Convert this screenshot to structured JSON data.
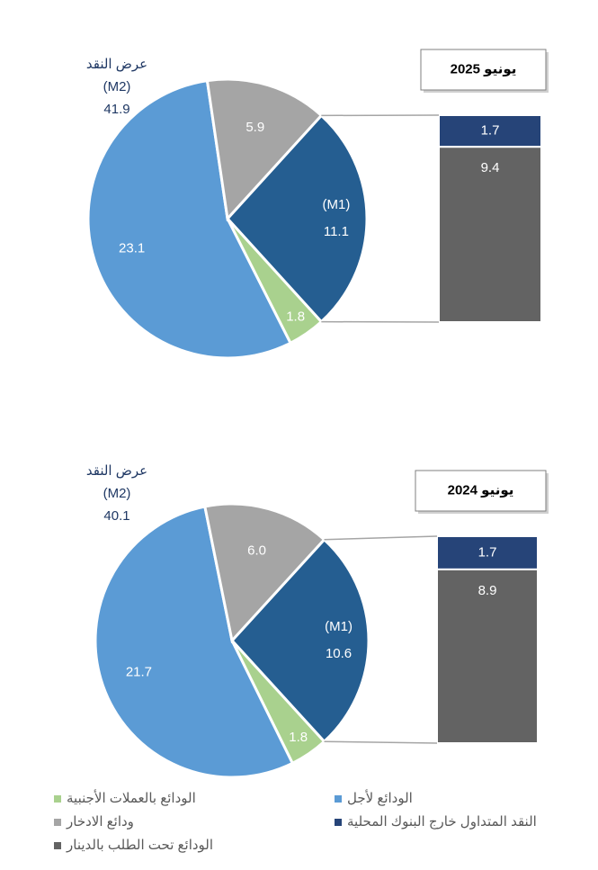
{
  "chart_data": [
    {
      "type": "pie",
      "title": "يونيو 2025",
      "total_label": "عرض النقد",
      "total_name": "(M2)",
      "total": 41.9,
      "m1_label": "(M1)",
      "pie": {
        "values": [
          23.1,
          5.9,
          11.1,
          1.8
        ],
        "colors": [
          "#5b9bd5",
          "#a5a5a5",
          "#255e91",
          "#a9d18e"
        ]
      },
      "bar": {
        "values": [
          1.7,
          9.4
        ],
        "colors": [
          "#264478",
          "#636363"
        ]
      }
    },
    {
      "type": "pie",
      "title": "يونيو 2024",
      "total_label": "عرض النقد",
      "total_name": "(M2)",
      "total": 40.1,
      "m1_label": "(M1)",
      "pie": {
        "values": [
          21.7,
          6.0,
          10.6,
          1.8
        ],
        "value_labels": [
          "21.7",
          "6.0",
          "10.6",
          "1.8"
        ],
        "colors": [
          "#5b9bd5",
          "#a5a5a5",
          "#255e91",
          "#a9d18e"
        ]
      },
      "bar": {
        "values": [
          1.7,
          8.9
        ],
        "colors": [
          "#264478",
          "#636363"
        ]
      }
    }
  ],
  "legend": [
    {
      "name": "الودائع لأجل",
      "color": "#5b9bd5"
    },
    {
      "name": "الودائع بالعملات الأجنبية",
      "color": "#a9d18e"
    },
    {
      "name": "النقد المتداول خارج البنوك المحلية",
      "color": "#264478"
    },
    {
      "name": "ودائع الادخار",
      "color": "#a5a5a5"
    },
    {
      "name": "الودائع تحت الطلب بالدينار",
      "color": "#636363"
    }
  ]
}
